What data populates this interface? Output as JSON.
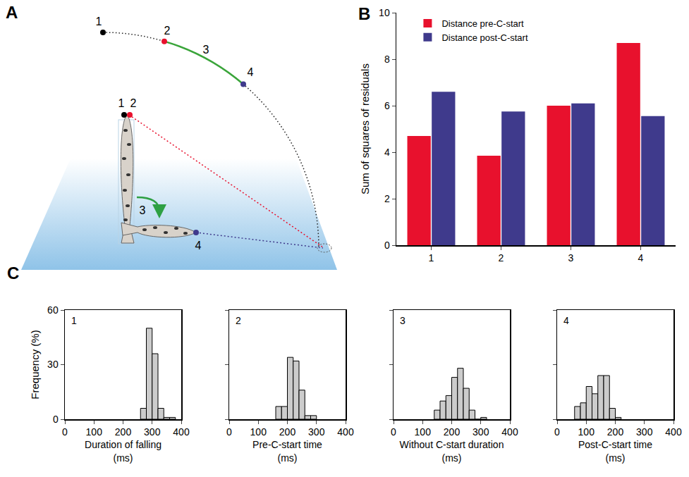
{
  "diagram": {
    "panel": "A",
    "arc_labels": [
      "1",
      "2",
      "3",
      "4"
    ],
    "fish_labels": [
      "1",
      "2",
      "3",
      "4"
    ]
  },
  "chart_data": [
    {
      "type": "bar",
      "panel": "B",
      "categories": [
        "1",
        "2",
        "3",
        "4"
      ],
      "series": [
        {
          "name": "Distance pre-C-start",
          "color": "#e8112d",
          "values": [
            4.7,
            3.85,
            6.0,
            8.7
          ]
        },
        {
          "name": "Distance post-C-start",
          "color": "#3f3a8c",
          "values": [
            6.6,
            5.75,
            6.1,
            5.55
          ]
        }
      ],
      "y_label": "Sum of squares of residuals",
      "ylim": [
        0,
        10
      ],
      "yticks": [
        0,
        2,
        4,
        6,
        8,
        10
      ],
      "legend": "top-left",
      "grid": false
    },
    {
      "type": "histogram",
      "panel": "C",
      "annotation": "1",
      "bins": [
        260,
        280,
        300,
        320,
        340,
        360,
        380
      ],
      "values": [
        6,
        50,
        36,
        6,
        1,
        1
      ],
      "x_label": "Duration of falling (ms)",
      "y_label": "Frequency (%)",
      "xlim": [
        0,
        400
      ],
      "xticks": [
        0,
        100,
        200,
        300,
        400
      ],
      "ylim": [
        0,
        60
      ],
      "yticks": [
        0,
        30,
        60
      ],
      "color": "#cccccc",
      "grid": false
    },
    {
      "type": "histogram",
      "annotation": "2",
      "bins": [
        160,
        180,
        200,
        220,
        240,
        260,
        280,
        300
      ],
      "values": [
        7,
        7,
        34,
        32,
        16,
        2,
        2
      ],
      "x_label": "Pre-C-start time (ms)",
      "xlim": [
        0,
        400
      ],
      "xticks": [
        0,
        100,
        200,
        300,
        400
      ],
      "ylim": [
        0,
        60
      ],
      "yticks": [
        0,
        30,
        60
      ],
      "color": "#cccccc",
      "grid": false,
      "tick_labels": "x"
    },
    {
      "type": "histogram",
      "annotation": "3",
      "bins": [
        140,
        160,
        180,
        200,
        220,
        240,
        260,
        280,
        300,
        320
      ],
      "values": [
        5,
        10,
        13,
        23,
        28,
        17,
        5,
        0,
        1
      ],
      "x_label": "Without C-start duration (ms)",
      "xlim": [
        0,
        400
      ],
      "xticks": [
        0,
        100,
        200,
        300,
        400
      ],
      "ylim": [
        0,
        60
      ],
      "yticks": [
        0,
        30,
        60
      ],
      "color": "#cccccc",
      "grid": false,
      "tick_labels": "x"
    },
    {
      "type": "histogram",
      "annotation": "4",
      "bins": [
        60,
        80,
        100,
        120,
        140,
        160,
        180,
        200,
        220
      ],
      "values": [
        7,
        9,
        18,
        14,
        24,
        24,
        6,
        1
      ],
      "x_label": "Post-C-start time (ms)",
      "xlim": [
        0,
        400
      ],
      "xticks": [
        0,
        100,
        200,
        300,
        400
      ],
      "ylim": [
        0,
        60
      ],
      "yticks": [
        0,
        30,
        60
      ],
      "color": "#cccccc",
      "grid": false,
      "tick_labels": "x"
    }
  ]
}
